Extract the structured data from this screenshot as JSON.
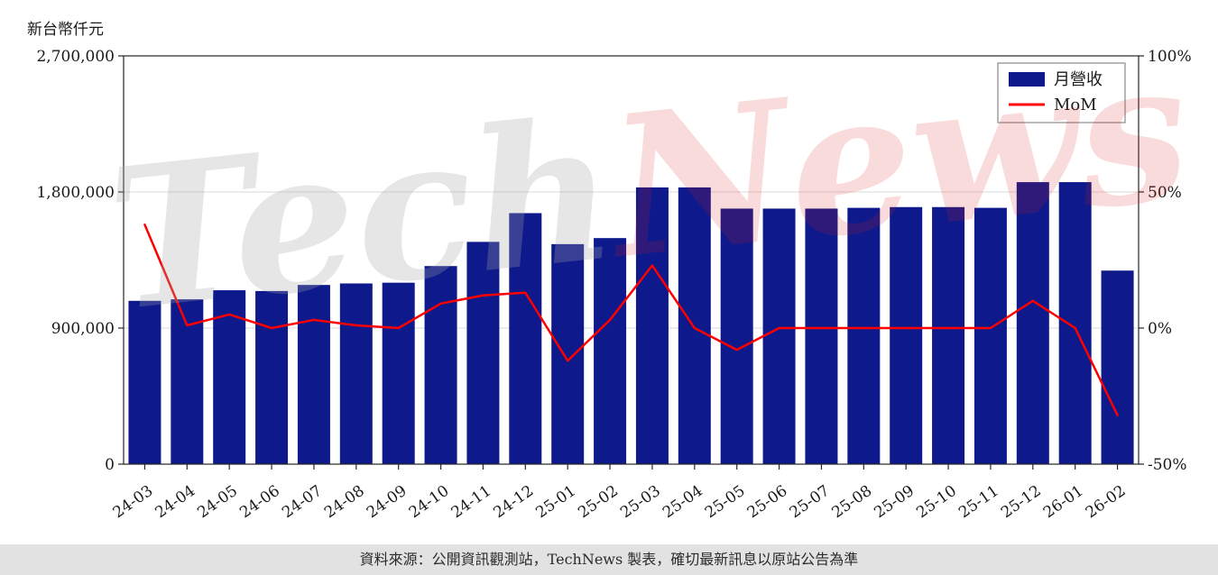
{
  "chart_data": {
    "type": "bar+line",
    "title": "",
    "ylabel_left": "新台幣仟元",
    "categories": [
      "24-03",
      "24-04",
      "24-05",
      "24-06",
      "24-07",
      "24-08",
      "24-09",
      "24-10",
      "24-11",
      "24-12",
      "25-01",
      "25-02",
      "25-03",
      "25-04",
      "25-05",
      "25-06",
      "25-07",
      "25-08",
      "25-09",
      "25-10",
      "25-11",
      "25-12",
      "26-01",
      "26-02"
    ],
    "series": [
      {
        "name": "月營收",
        "type": "bar",
        "axis": "left",
        "color": "#0e1a8c",
        "values": [
          1080000,
          1090000,
          1150000,
          1145000,
          1185000,
          1195000,
          1200000,
          1310000,
          1470000,
          1660000,
          1455000,
          1495000,
          1830000,
          1830000,
          1690000,
          1690000,
          1690000,
          1695000,
          1700000,
          1700000,
          1695000,
          1865000,
          1865000,
          1280000
        ]
      },
      {
        "name": "MoM",
        "type": "line",
        "axis": "right",
        "color": "#ff0000",
        "values": [
          38,
          1,
          5,
          0,
          3,
          1,
          0,
          9,
          12,
          13,
          -12,
          3,
          23,
          0,
          -8,
          0,
          0,
          0,
          0,
          0,
          0,
          10,
          0,
          -32
        ]
      }
    ],
    "left_axis": {
      "min": 0,
      "max": 2700000,
      "tick_values": [
        0,
        900000,
        1800000,
        2700000
      ],
      "tick_labels": [
        "0",
        "900,000",
        "1,800,000",
        "2,700,000"
      ]
    },
    "right_axis": {
      "min": -50,
      "max": 100,
      "tick_values": [
        -50,
        0,
        50,
        100
      ],
      "tick_labels": [
        "-50%",
        "0%",
        "50%",
        "100%"
      ]
    },
    "grid": true,
    "legend_position": "top-right"
  },
  "watermark": {
    "tech": "Tech",
    "news": "News"
  },
  "footer": {
    "text": "資料來源：公開資訊觀測站，TechNews 製表，確切最新訊息以原站公告為準"
  }
}
